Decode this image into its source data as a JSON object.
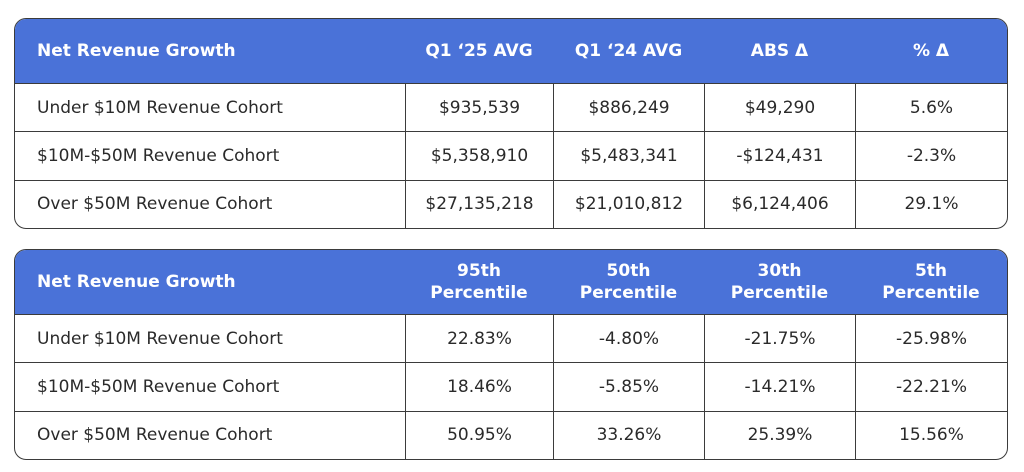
{
  "colors": {
    "header_bg": "#4a72d8",
    "positive": "#5bb87a",
    "negative": "#e0504a"
  },
  "table1": {
    "headers": [
      "Net Revenue Growth",
      "Q1 ‘25 AVG",
      "Q1 ‘24 AVG",
      "ABS Δ",
      "% Δ"
    ],
    "rows": [
      {
        "label": "Under $10M Revenue Cohort",
        "q1_25": "$935,539",
        "q1_24": "$886,249",
        "abs": "$49,290",
        "pct": "5.6%"
      },
      {
        "label": "$10M-$50M Revenue Cohort",
        "q1_25": "$5,358,910",
        "q1_24": "$5,483,341",
        "abs": "-$124,431",
        "pct": "-2.3%"
      },
      {
        "label": "Over $50M Revenue Cohort",
        "q1_25": "$27,135,218",
        "q1_24": "$21,010,812",
        "abs": "$6,124,406",
        "pct": "29.1%"
      }
    ]
  },
  "table2": {
    "headers": [
      {
        "line1": "Net Revenue Growth",
        "line2": ""
      },
      {
        "line1": "95th",
        "line2": "Percentile"
      },
      {
        "line1": "50th",
        "line2": "Percentile"
      },
      {
        "line1": "30th",
        "line2": "Percentile"
      },
      {
        "line1": "5th",
        "line2": "Percentile"
      }
    ],
    "rows": [
      {
        "label": "Under $10M Revenue Cohort",
        "p95": "22.83%",
        "p50": "-4.80%",
        "p30": "-21.75%",
        "p5": "-25.98%"
      },
      {
        "label": "$10M-$50M Revenue Cohort",
        "p95": "18.46%",
        "p50": "-5.85%",
        "p30": "-14.21%",
        "p5": "-22.21%"
      },
      {
        "label": "Over $50M Revenue Cohort",
        "p95": "50.95%",
        "p50": "33.26%",
        "p30": "25.39%",
        "p5": "15.56%"
      }
    ]
  }
}
